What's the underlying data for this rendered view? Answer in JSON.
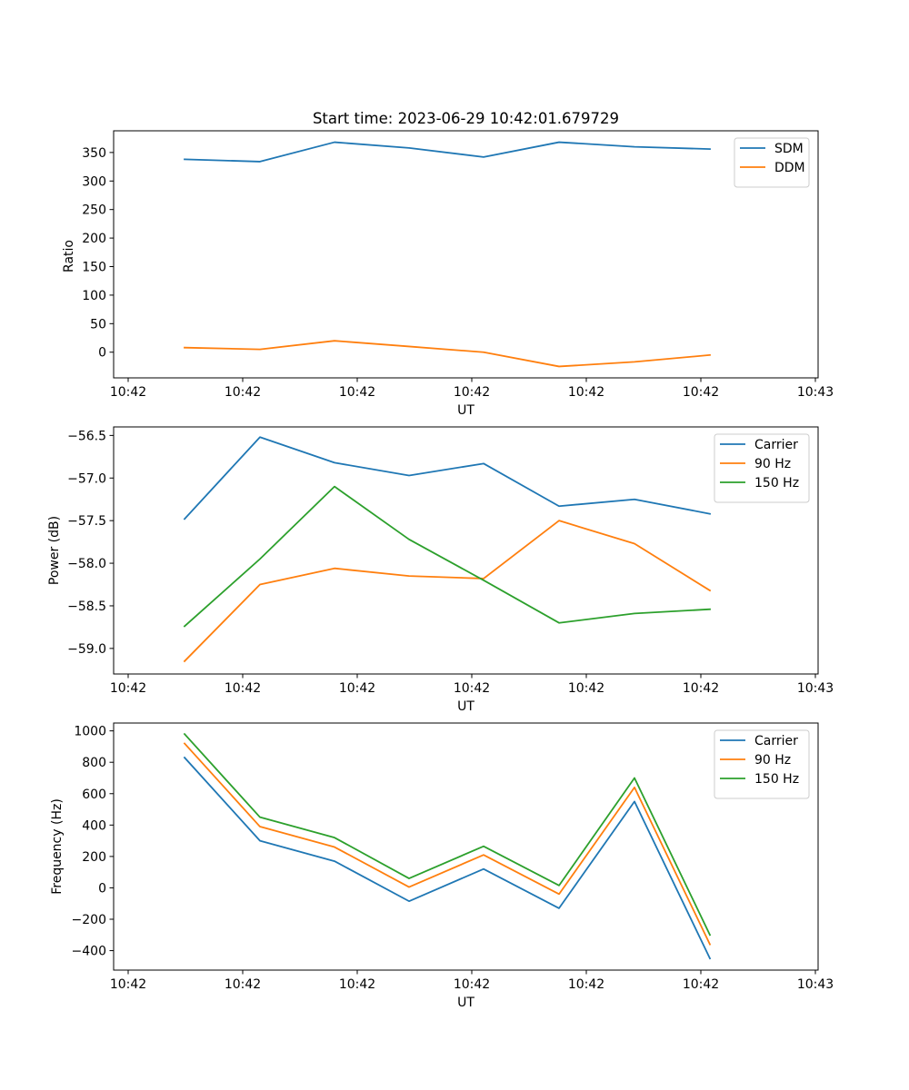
{
  "figure_title": "Start time: 2023-06-29 10:42:01.679729",
  "colors": {
    "blue": "#1f77b4",
    "orange": "#ff7f0e",
    "green": "#2ca02c"
  },
  "chart_data": [
    {
      "type": "line",
      "title": "Start time: 2023-06-29 10:42:01.679729",
      "xlabel": "UT",
      "ylabel": "Ratio",
      "x_tick_labels": [
        "10:42",
        "10:42",
        "10:42",
        "10:42",
        "10:42",
        "10:42",
        "10:43"
      ],
      "y_ticks": [
        0,
        50,
        100,
        150,
        200,
        250,
        300,
        350
      ],
      "y_tick_labels": [
        "0",
        "50",
        "100",
        "150",
        "200",
        "250",
        "300",
        "350"
      ],
      "ylim": [
        -45,
        388
      ],
      "grid": false,
      "legend_position": "upper right",
      "series": [
        {
          "name": "SDM",
          "color": "#1f77b4",
          "values": [
            338,
            334,
            368,
            358,
            342,
            368,
            360,
            356
          ]
        },
        {
          "name": "DDM",
          "color": "#ff7f0e",
          "values": [
            8,
            5,
            20,
            10,
            0,
            -25,
            -17,
            -5
          ]
        }
      ]
    },
    {
      "type": "line",
      "title": "",
      "xlabel": "UT",
      "ylabel": "Power (dB)",
      "x_tick_labels": [
        "10:42",
        "10:42",
        "10:42",
        "10:42",
        "10:42",
        "10:42",
        "10:43"
      ],
      "y_ticks": [
        -59.0,
        -58.5,
        -58.0,
        -57.5,
        -57.0,
        -56.5
      ],
      "y_tick_labels": [
        "−59.0",
        "−58.5",
        "−58.0",
        "−57.5",
        "−57.0",
        "−56.5"
      ],
      "ylim": [
        -59.3,
        -56.4
      ],
      "grid": false,
      "legend_position": "upper right",
      "series": [
        {
          "name": "Carrier",
          "color": "#1f77b4",
          "values": [
            -57.48,
            -56.52,
            -56.82,
            -56.97,
            -56.83,
            -57.33,
            -57.25,
            -57.42
          ]
        },
        {
          "name": "90 Hz",
          "color": "#ff7f0e",
          "values": [
            -59.15,
            -58.25,
            -58.06,
            -58.15,
            -58.18,
            -57.5,
            -57.77,
            -58.32
          ]
        },
        {
          "name": "150 Hz",
          "color": "#2ca02c",
          "values": [
            -58.74,
            -57.95,
            -57.1,
            -57.72,
            -58.2,
            -58.7,
            -58.59,
            -58.54
          ]
        }
      ]
    },
    {
      "type": "line",
      "title": "",
      "xlabel": "UT",
      "ylabel": "Frequency (Hz)",
      "x_tick_labels": [
        "10:42",
        "10:42",
        "10:42",
        "10:42",
        "10:42",
        "10:42",
        "10:43"
      ],
      "y_ticks": [
        -400,
        -200,
        0,
        200,
        400,
        600,
        800,
        1000
      ],
      "y_tick_labels": [
        "−400",
        "−200",
        "0",
        "200",
        "400",
        "600",
        "800",
        "1000"
      ],
      "ylim": [
        -524,
        1050
      ],
      "grid": false,
      "legend_position": "upper right",
      "series": [
        {
          "name": "Carrier",
          "color": "#1f77b4",
          "values": [
            830,
            300,
            170,
            -85,
            120,
            -130,
            550,
            -450
          ]
        },
        {
          "name": "90 Hz",
          "color": "#ff7f0e",
          "values": [
            920,
            390,
            260,
            5,
            210,
            -40,
            640,
            -360
          ]
        },
        {
          "name": "150 Hz",
          "color": "#2ca02c",
          "values": [
            980,
            450,
            320,
            60,
            265,
            15,
            700,
            -300
          ]
        }
      ]
    }
  ]
}
